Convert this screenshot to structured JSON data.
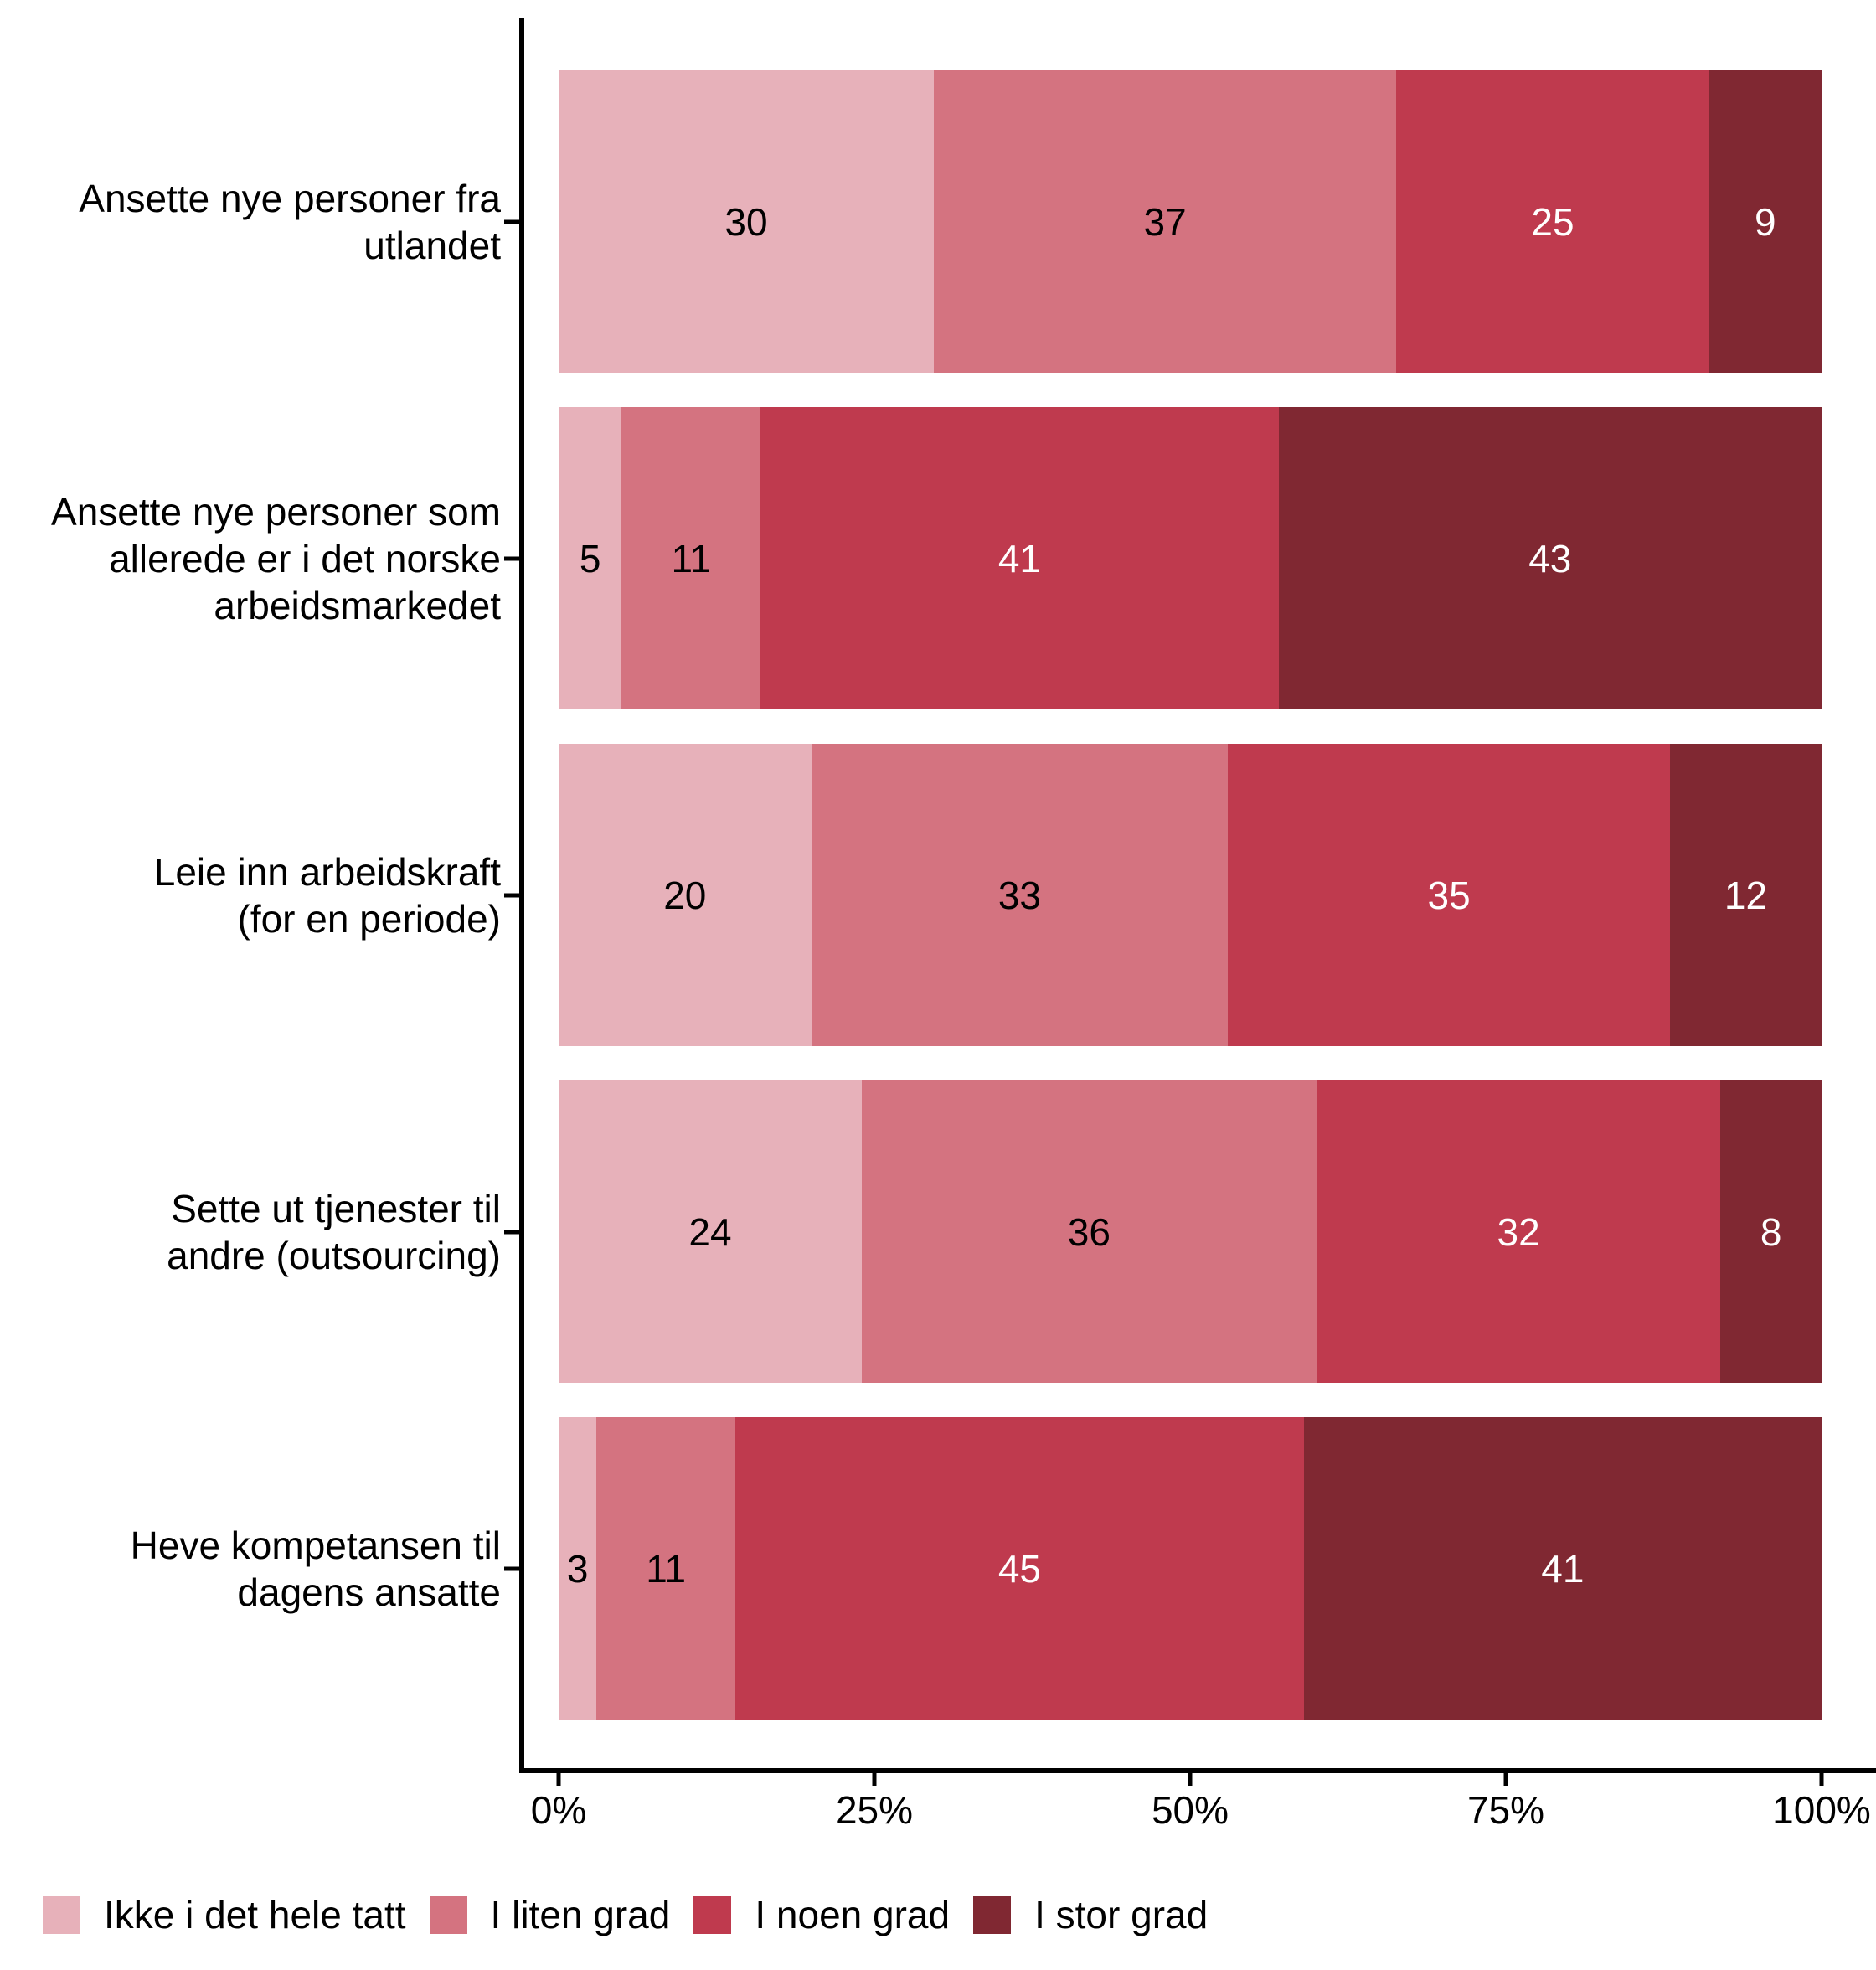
{
  "chart_data": {
    "type": "bar",
    "orientation": "horizontal",
    "stacked": true,
    "units": "percent",
    "title": "",
    "grid": false,
    "axis_color": "#000000",
    "background_color": "#ffffff",
    "categories": [
      "Ansette nye personer fra utlandet",
      "Ansette nye personer som allerede er i det norske arbeidsmarkedet",
      "Leie inn arbeidskraft (for en periode)",
      "Sette ut tjenester til andre (outsourcing)",
      "Heve kompetansen til dagens ansatte"
    ],
    "category_lines": [
      [
        "Ansette nye personer fra",
        "utlandet"
      ],
      [
        "Ansette nye personer som",
        "allerede er i det norske",
        "arbeidsmarkedet"
      ],
      [
        "Leie inn arbeidskraft",
        "(for en periode)"
      ],
      [
        "Sette ut tjenester til",
        "andre (outsourcing)"
      ],
      [
        "Heve kompetansen til",
        "dagens ansatte"
      ]
    ],
    "series": [
      {
        "name": "Ikke i det hele tatt",
        "color": "#E7B1BA",
        "text_color": "#000000",
        "values": [
          30,
          5,
          20,
          24,
          3
        ]
      },
      {
        "name": "I liten grad",
        "color": "#D47380",
        "text_color": "#000000",
        "values": [
          37,
          11,
          33,
          36,
          11
        ]
      },
      {
        "name": "I noen grad",
        "color": "#BF3A4E",
        "text_color": "#ffffff",
        "values": [
          25,
          41,
          35,
          32,
          45
        ]
      },
      {
        "name": "I stor grad",
        "color": "#802832",
        "text_color": "#ffffff",
        "values": [
          9,
          43,
          12,
          8,
          41
        ]
      }
    ],
    "x_axis": {
      "range": [
        0,
        100
      ],
      "tick_labels": [
        "0%",
        "25%",
        "50%",
        "75%",
        "100%"
      ]
    },
    "legend": {
      "position": "bottom-left",
      "items": [
        "Ikke i det hele tatt",
        "I liten grad",
        "I noen grad",
        "I stor grad"
      ]
    }
  }
}
